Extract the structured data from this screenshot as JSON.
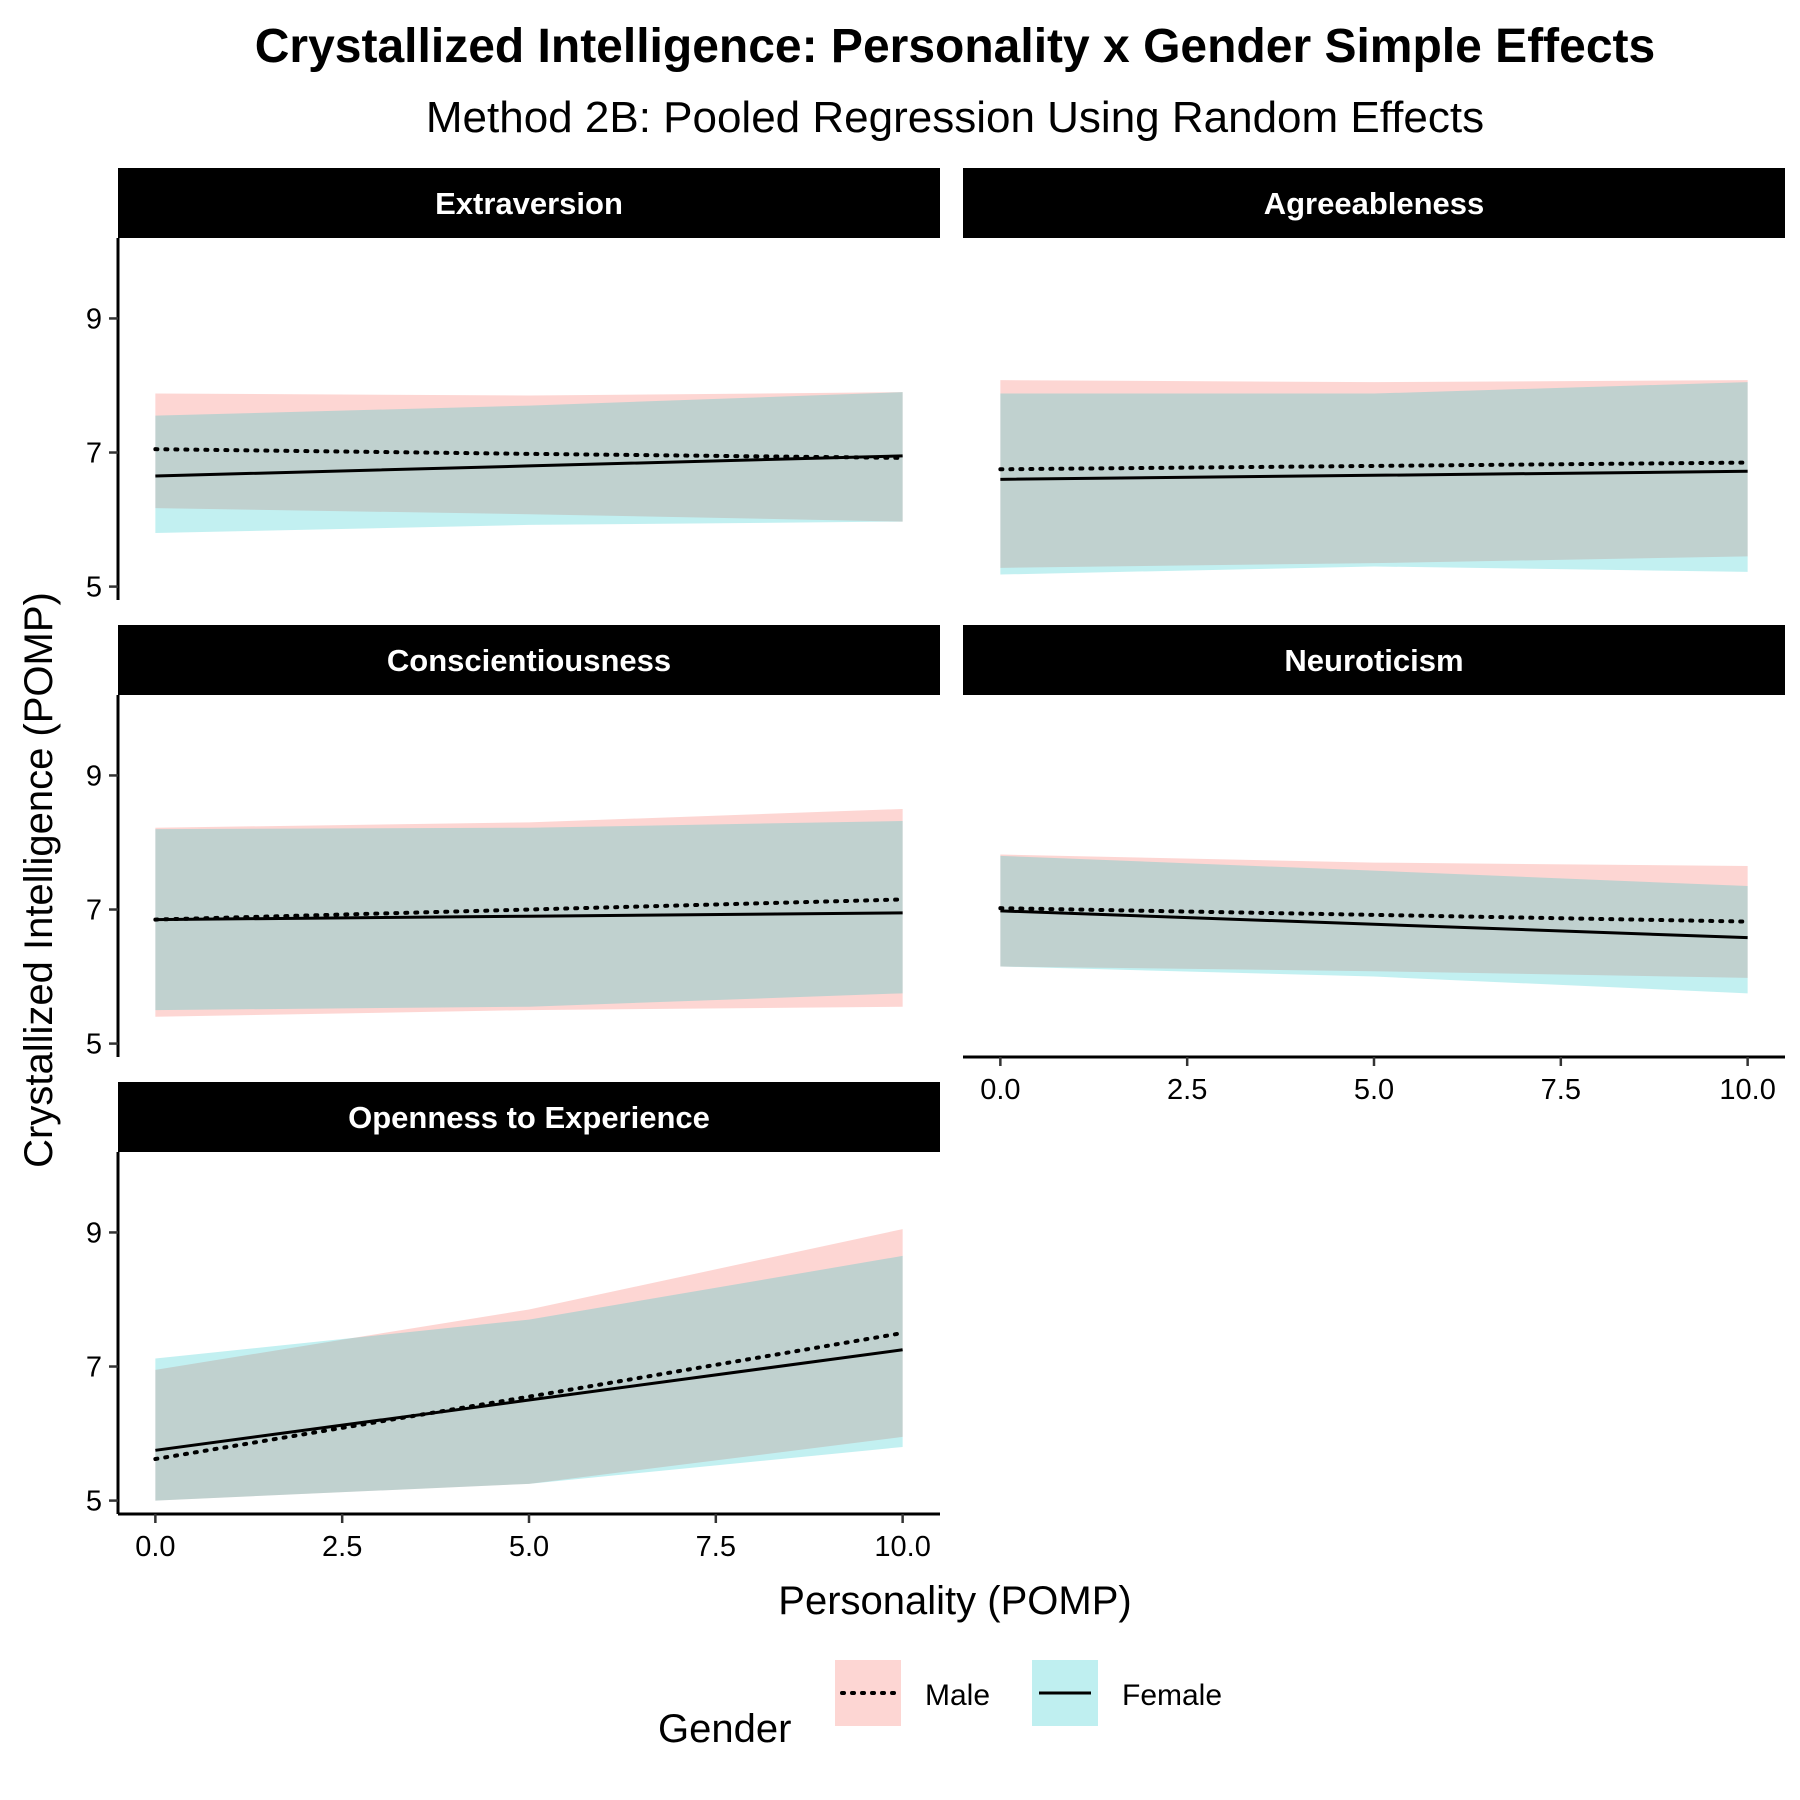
{
  "chart_data": {
    "type": "line",
    "title": "Crystallized Intelligence: Personality x Gender Simple Effects",
    "subtitle": "Method 2B: Pooled Regression Using Random Effects",
    "xlabel": "Personality (POMP)",
    "ylabel": "Crystallized Intelligence (POMP)",
    "xlim": [
      -0.5,
      10.5
    ],
    "ylim": [
      4.8,
      10.2
    ],
    "x_ticks": [
      "0.0",
      "2.5",
      "5.0",
      "7.5",
      "10.0"
    ],
    "x_tick_values": [
      0,
      2.5,
      5,
      7.5,
      10
    ],
    "y_ticks": [
      "5",
      "7",
      "9"
    ],
    "y_tick_values": [
      5,
      7,
      9
    ],
    "grid": false,
    "legend": {
      "title": "Gender",
      "position": "bottom",
      "entries": [
        {
          "label": "Male",
          "line": "dotted",
          "fill": "#F8766D"
        },
        {
          "label": "Female",
          "line": "solid",
          "fill": "#00BFC4"
        }
      ]
    },
    "panels": [
      {
        "name": "Extraversion",
        "x": [
          0,
          5,
          10
        ],
        "series": [
          {
            "name": "Male",
            "fit": [
              7.05,
              6.98,
              6.92
            ],
            "lower": [
              6.17,
              6.08,
              5.97
            ],
            "upper": [
              7.88,
              7.85,
              7.9
            ]
          },
          {
            "name": "Female",
            "fit": [
              6.65,
              6.8,
              6.95
            ],
            "lower": [
              5.8,
              5.92,
              5.97
            ],
            "upper": [
              7.55,
              7.7,
              7.9
            ]
          }
        ]
      },
      {
        "name": "Agreeableness",
        "x": [
          0,
          5,
          10
        ],
        "series": [
          {
            "name": "Male",
            "fit": [
              6.75,
              6.8,
              6.85
            ],
            "lower": [
              5.28,
              5.35,
              5.45
            ],
            "upper": [
              8.08,
              8.05,
              8.08
            ]
          },
          {
            "name": "Female",
            "fit": [
              6.6,
              6.66,
              6.72
            ],
            "lower": [
              5.18,
              5.3,
              5.22
            ],
            "upper": [
              7.88,
              7.88,
              8.05
            ]
          }
        ]
      },
      {
        "name": "Conscientiousness",
        "x": [
          0,
          5,
          10
        ],
        "series": [
          {
            "name": "Male",
            "fit": [
              6.85,
              7.0,
              7.15
            ],
            "lower": [
              5.4,
              5.5,
              5.55
            ],
            "upper": [
              8.22,
              8.3,
              8.5
            ]
          },
          {
            "name": "Female",
            "fit": [
              6.85,
              6.9,
              6.95
            ],
            "lower": [
              5.5,
              5.55,
              5.75
            ],
            "upper": [
              8.2,
              8.22,
              8.32
            ]
          }
        ]
      },
      {
        "name": "Neuroticism",
        "x": [
          0,
          5,
          10
        ],
        "series": [
          {
            "name": "Male",
            "fit": [
              7.02,
              6.92,
              6.82
            ],
            "lower": [
              6.15,
              6.08,
              5.98
            ],
            "upper": [
              7.82,
              7.7,
              7.65
            ]
          },
          {
            "name": "Female",
            "fit": [
              6.98,
              6.78,
              6.58
            ],
            "lower": [
              6.15,
              6.0,
              5.75
            ],
            "upper": [
              7.8,
              7.58,
              7.35
            ]
          }
        ]
      },
      {
        "name": "Openness to Experience",
        "x": [
          0,
          5,
          10
        ],
        "series": [
          {
            "name": "Male",
            "fit": [
              5.62,
              6.55,
              7.5
            ],
            "lower": [
              5.0,
              5.25,
              5.95
            ],
            "upper": [
              6.95,
              7.85,
              9.05
            ]
          },
          {
            "name": "Female",
            "fit": [
              5.75,
              6.5,
              7.25
            ],
            "lower": [
              5.0,
              5.25,
              5.8
            ],
            "upper": [
              7.12,
              7.7,
              8.65
            ]
          }
        ]
      }
    ]
  }
}
